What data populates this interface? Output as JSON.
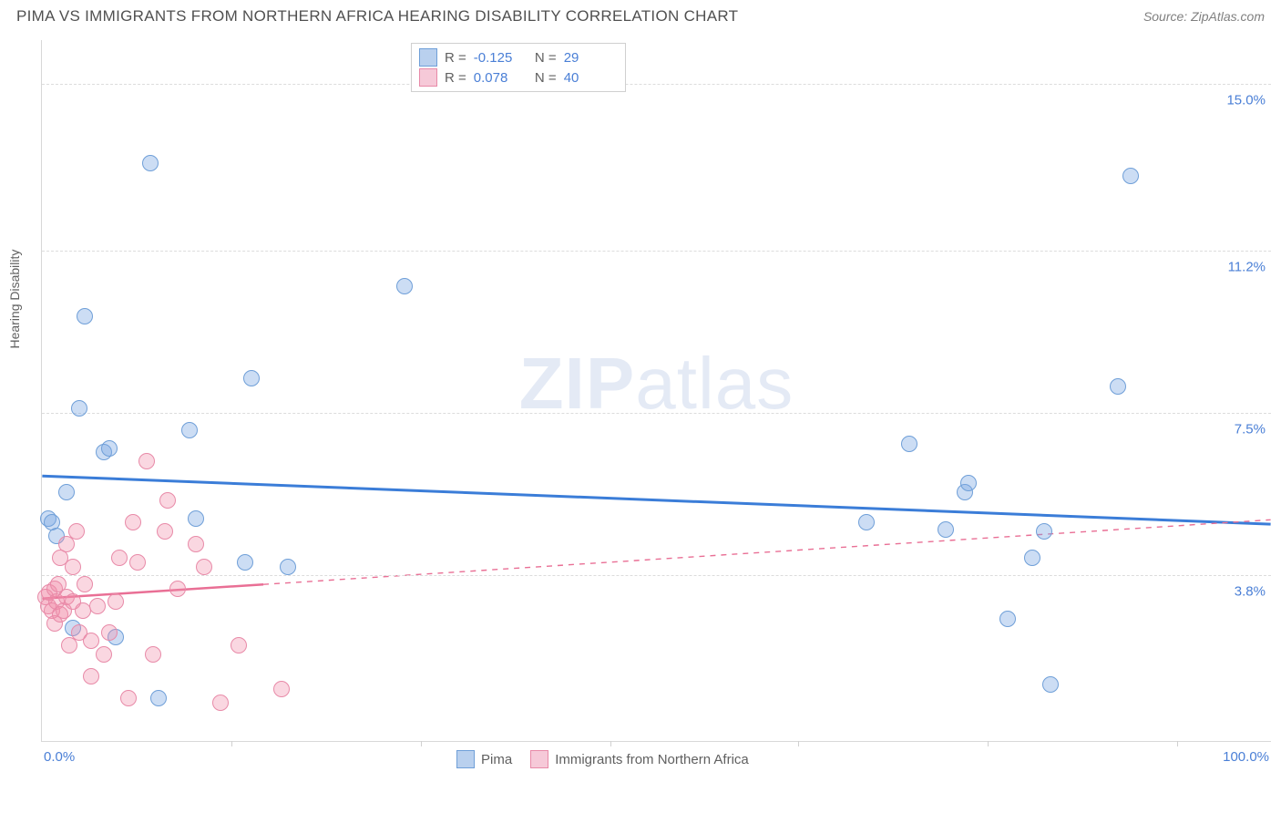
{
  "title": "PIMA VS IMMIGRANTS FROM NORTHERN AFRICA HEARING DISABILITY CORRELATION CHART",
  "source": "Source: ZipAtlas.com",
  "watermark_bold": "ZIP",
  "watermark_light": "atlas",
  "ylabel": "Hearing Disability",
  "chart": {
    "type": "scatter",
    "background_color": "#ffffff",
    "grid_color": "#dcdcdc",
    "axis_color": "#d8d8d8",
    "xlim": [
      0,
      100
    ],
    "ylim": [
      0,
      16
    ],
    "yticks": [
      {
        "value": 3.8,
        "label": "3.8%"
      },
      {
        "value": 7.5,
        "label": "7.5%"
      },
      {
        "value": 11.2,
        "label": "11.2%"
      },
      {
        "value": 15.0,
        "label": "15.0%"
      }
    ],
    "xticks_minor": [
      15.4,
      30.8,
      46.2,
      61.5,
      76.9,
      92.3
    ],
    "xtick_labels": [
      {
        "value": 0,
        "label": "0.0%",
        "align": "left"
      },
      {
        "value": 100,
        "label": "100.0%",
        "align": "right"
      }
    ],
    "label_color": "#4a7fd6",
    "label_fontsize": 15,
    "series": [
      {
        "name": "Pima",
        "marker_color_fill": "rgba(120,165,225,0.38)",
        "marker_color_stroke": "#6f9fd8",
        "marker_radius": 9,
        "swatch_fill": "#b9d0ee",
        "swatch_stroke": "#6f9fd8",
        "line_color": "#3b7dd8",
        "line_width": 3,
        "stats": {
          "R": "-0.125",
          "N": "29"
        },
        "trend": {
          "x1": 0,
          "y1": 6.05,
          "x2": 100,
          "y2": 4.95
        },
        "solid_until_x": 100,
        "points": [
          {
            "x": 0.5,
            "y": 5.1
          },
          {
            "x": 0.8,
            "y": 5.0
          },
          {
            "x": 1.2,
            "y": 4.7
          },
          {
            "x": 2.0,
            "y": 5.7
          },
          {
            "x": 3.0,
            "y": 7.6
          },
          {
            "x": 3.5,
            "y": 9.7
          },
          {
            "x": 5.0,
            "y": 6.6
          },
          {
            "x": 5.5,
            "y": 6.7
          },
          {
            "x": 8.8,
            "y": 13.2
          },
          {
            "x": 9.5,
            "y": 1.0
          },
          {
            "x": 12.0,
            "y": 7.1
          },
          {
            "x": 12.5,
            "y": 5.1
          },
          {
            "x": 16.5,
            "y": 4.1
          },
          {
            "x": 17.0,
            "y": 8.3
          },
          {
            "x": 20.0,
            "y": 4.0
          },
          {
            "x": 29.5,
            "y": 10.4
          },
          {
            "x": 2.5,
            "y": 2.6
          },
          {
            "x": 6.0,
            "y": 2.4
          },
          {
            "x": 70.5,
            "y": 6.8
          },
          {
            "x": 67.0,
            "y": 5.0
          },
          {
            "x": 73.5,
            "y": 4.85
          },
          {
            "x": 75.0,
            "y": 5.7
          },
          {
            "x": 75.3,
            "y": 5.9
          },
          {
            "x": 78.5,
            "y": 2.8
          },
          {
            "x": 80.5,
            "y": 4.2
          },
          {
            "x": 81.5,
            "y": 4.8
          },
          {
            "x": 82.0,
            "y": 1.3
          },
          {
            "x": 87.5,
            "y": 8.1
          },
          {
            "x": 88.5,
            "y": 12.9
          }
        ]
      },
      {
        "name": "Immigrants from Northern Africa",
        "marker_color_fill": "rgba(240,140,170,0.35)",
        "marker_color_stroke": "#e88aa8",
        "marker_radius": 9,
        "swatch_fill": "#f6c9d8",
        "swatch_stroke": "#e88aa8",
        "line_color": "#e96f95",
        "line_width": 2.5,
        "stats": {
          "R": "0.078",
          "N": "40"
        },
        "trend": {
          "x1": 0,
          "y1": 3.25,
          "x2": 100,
          "y2": 5.05
        },
        "solid_until_x": 18,
        "points": [
          {
            "x": 0.3,
            "y": 3.3
          },
          {
            "x": 0.5,
            "y": 3.1
          },
          {
            "x": 0.6,
            "y": 3.4
          },
          {
            "x": 0.8,
            "y": 3.0
          },
          {
            "x": 1.0,
            "y": 3.5
          },
          {
            "x": 1.0,
            "y": 2.7
          },
          {
            "x": 1.2,
            "y": 3.2
          },
          {
            "x": 1.3,
            "y": 3.6
          },
          {
            "x": 1.5,
            "y": 2.9
          },
          {
            "x": 1.5,
            "y": 4.2
          },
          {
            "x": 1.8,
            "y": 3.0
          },
          {
            "x": 2.0,
            "y": 4.5
          },
          {
            "x": 2.0,
            "y": 3.3
          },
          {
            "x": 2.2,
            "y": 2.2
          },
          {
            "x": 2.5,
            "y": 4.0
          },
          {
            "x": 2.5,
            "y": 3.2
          },
          {
            "x": 2.8,
            "y": 4.8
          },
          {
            "x": 3.0,
            "y": 2.5
          },
          {
            "x": 3.3,
            "y": 3.0
          },
          {
            "x": 3.5,
            "y": 3.6
          },
          {
            "x": 4.0,
            "y": 2.3
          },
          {
            "x": 4.0,
            "y": 1.5
          },
          {
            "x": 4.5,
            "y": 3.1
          },
          {
            "x": 5.0,
            "y": 2.0
          },
          {
            "x": 5.5,
            "y": 2.5
          },
          {
            "x": 6.0,
            "y": 3.2
          },
          {
            "x": 6.3,
            "y": 4.2
          },
          {
            "x": 7.0,
            "y": 1.0
          },
          {
            "x": 7.4,
            "y": 5.0
          },
          {
            "x": 7.8,
            "y": 4.1
          },
          {
            "x": 8.5,
            "y": 6.4
          },
          {
            "x": 9.0,
            "y": 2.0
          },
          {
            "x": 10.0,
            "y": 4.8
          },
          {
            "x": 10.2,
            "y": 5.5
          },
          {
            "x": 11.0,
            "y": 3.5
          },
          {
            "x": 12.5,
            "y": 4.5
          },
          {
            "x": 13.2,
            "y": 4.0
          },
          {
            "x": 14.5,
            "y": 0.9
          },
          {
            "x": 16.0,
            "y": 2.2
          },
          {
            "x": 19.5,
            "y": 1.2
          }
        ]
      }
    ]
  }
}
